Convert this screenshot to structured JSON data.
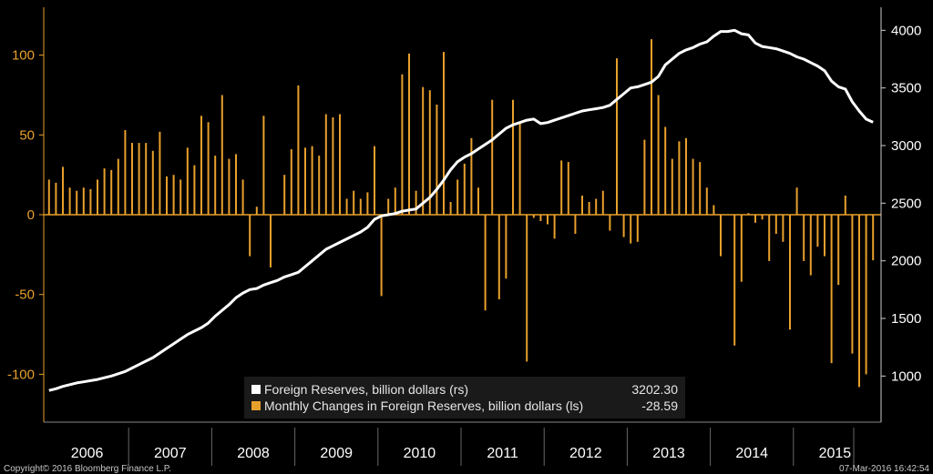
{
  "chart_data": {
    "type": "bar+line",
    "title": "",
    "x_labels": [
      "2006",
      "2007",
      "2008",
      "2009",
      "2010",
      "2011",
      "2012",
      "2013",
      "2014",
      "2015"
    ],
    "left_axis": {
      "ticks": [
        "-100",
        "-50",
        "0",
        "50",
        "100"
      ],
      "range": [
        -130,
        130
      ]
    },
    "right_axis": {
      "ticks": [
        "1000",
        "1500",
        "2000",
        "2500",
        "3000",
        "3500",
        "4000"
      ],
      "range": [
        600,
        4200
      ]
    },
    "series": [
      {
        "name": "Monthly Changes in Foreign Reserves, billion dollars (ls)",
        "axis": "left",
        "color": "#e8a02c",
        "last_value": "-28.59",
        "values": [
          22,
          20,
          30,
          17,
          15,
          17,
          16,
          22,
          29,
          28,
          35,
          53,
          45,
          45,
          45,
          40,
          52,
          24,
          25,
          22,
          42,
          31,
          62,
          58,
          37,
          75,
          35,
          38,
          22,
          -26,
          5,
          62,
          -33,
          0,
          25,
          41,
          81,
          42,
          43,
          37,
          63,
          61,
          63,
          10,
          15,
          10,
          14,
          43,
          -51,
          10,
          17,
          88,
          101,
          15,
          80,
          78,
          69,
          102,
          8,
          22,
          32,
          48,
          17,
          -60,
          72,
          -53,
          -40,
          72,
          58,
          -92,
          -2,
          -4,
          -6,
          -15,
          34,
          33,
          -12,
          12,
          8,
          10,
          15,
          -10,
          98,
          -14,
          -18,
          -17,
          47,
          110,
          75,
          55,
          35,
          46,
          48,
          35,
          33,
          17,
          6,
          -26,
          0,
          -82,
          -42,
          1,
          -5,
          -3,
          -29,
          -12,
          -17,
          -72,
          17,
          -29,
          -38,
          -20,
          -26,
          -93,
          -44,
          12,
          -87,
          -108,
          -100,
          -28.59
        ]
      },
      {
        "name": "Foreign Reserves, billion dollars (rs)",
        "axis": "right",
        "color": "#ffffff",
        "last_value": "3202.30",
        "values": [
          875,
          890,
          910,
          925,
          940,
          950,
          960,
          970,
          985,
          1000,
          1020,
          1040,
          1070,
          1100,
          1130,
          1160,
          1200,
          1240,
          1280,
          1320,
          1360,
          1390,
          1420,
          1460,
          1520,
          1570,
          1620,
          1680,
          1720,
          1750,
          1760,
          1790,
          1810,
          1830,
          1860,
          1880,
          1900,
          1950,
          2000,
          2050,
          2100,
          2130,
          2160,
          2190,
          2220,
          2250,
          2290,
          2360,
          2390,
          2400,
          2410,
          2430,
          2440,
          2450,
          2500,
          2550,
          2620,
          2700,
          2790,
          2860,
          2900,
          2930,
          2970,
          3010,
          3050,
          3100,
          3150,
          3180,
          3200,
          3220,
          3230,
          3190,
          3200,
          3220,
          3240,
          3260,
          3280,
          3300,
          3310,
          3320,
          3330,
          3350,
          3400,
          3450,
          3500,
          3510,
          3530,
          3550,
          3600,
          3700,
          3750,
          3800,
          3830,
          3850,
          3880,
          3900,
          3950,
          3990,
          3990,
          4000,
          3970,
          3960,
          3890,
          3860,
          3850,
          3840,
          3820,
          3800,
          3770,
          3750,
          3720,
          3690,
          3650,
          3560,
          3510,
          3490,
          3380,
          3300,
          3230,
          3202.3
        ]
      }
    ]
  },
  "legend": {
    "reserves_label": "Foreign Reserves, billion dollars (rs)",
    "reserves_value": "3202.30",
    "changes_label": "Monthly Changes in Foreign Reserves, billion dollars (ls)",
    "changes_value": "-28.59"
  },
  "footer": {
    "copyright": "Copyright© 2016 Bloomberg Finance L.P.",
    "timestamp": "07-Mar-2016 16:42:54"
  }
}
